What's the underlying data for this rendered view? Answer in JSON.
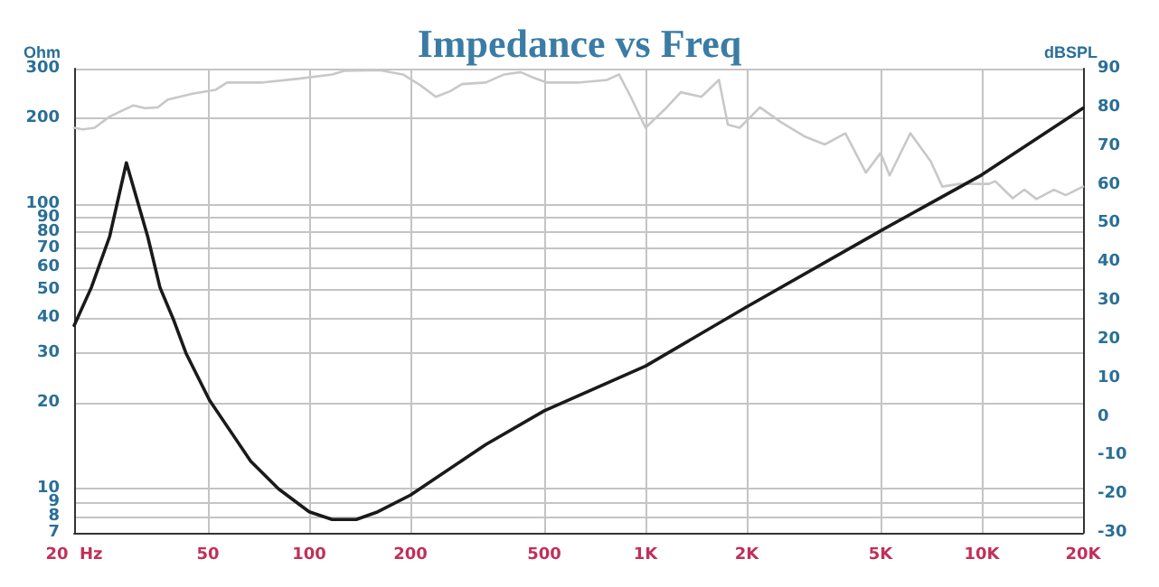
{
  "chart_data": {
    "type": "line",
    "title": "Impedance vs Freq",
    "ylabel": "Ohm",
    "y2label": "dBSPL",
    "log": "xy",
    "grid": true,
    "line_style": "solid",
    "marker": "none",
    "xlim": [
      20,
      20000
    ],
    "xticks": [
      {
        "value": 20,
        "label": "20  Hz"
      },
      50,
      100,
      200,
      500,
      {
        "value": 1000,
        "label": "1K"
      },
      {
        "value": 2000,
        "label": "2K"
      },
      {
        "value": 5000,
        "label": "5K"
      },
      {
        "value": 10000,
        "label": "10K"
      },
      {
        "value": 20000,
        "label": "20K"
      }
    ],
    "ylim": [
      7,
      300
    ],
    "yticks": [
      7,
      8,
      9,
      10,
      20,
      30,
      40,
      50,
      60,
      70,
      80,
      90,
      100,
      200,
      300
    ],
    "y2lim": [
      -30,
      90
    ],
    "y2ticks": [
      -30,
      -20,
      -10,
      0,
      10,
      20,
      30,
      40,
      50,
      60,
      70,
      80,
      90
    ],
    "series": [
      {
        "color": "#c8c8c8",
        "axis": "y2",
        "x": [
          20,
          21.2,
          23,
          25.5,
          30,
          32.5,
          35.5,
          38,
          45,
          52.6,
          57,
          72,
          93,
          117,
          127,
          162,
          190,
          215,
          238,
          263,
          285,
          335,
          380,
          425,
          460,
          510,
          629,
          770,
          834,
          904,
          1000,
          1151,
          1273,
          1466,
          1654,
          1757,
          1905,
          2190,
          2524,
          2966,
          3416,
          3930,
          4520,
          5000,
          5320,
          6130,
          7050,
          7630,
          8600,
          10500,
          10960,
          12350,
          13380,
          14540,
          16380,
          17770,
          20000
        ],
        "values": [
          74.7,
          74.3,
          74.7,
          77.6,
          80.5,
          79.8,
          80,
          82,
          83.5,
          84.5,
          86.4,
          86.4,
          87.4,
          88.5,
          89.4,
          89.6,
          88.5,
          85.6,
          82.7,
          84.2,
          86,
          86.4,
          88.5,
          89.1,
          87.8,
          86.4,
          86.4,
          87.1,
          88.5,
          82.7,
          74.7,
          79.8,
          83.9,
          82.7,
          87.1,
          75.5,
          74.7,
          80,
          76.2,
          72.5,
          70.4,
          73.3,
          63.1,
          68.2,
          62.4,
          73.3,
          66,
          59.5,
          60.2,
          60.2,
          60.9,
          56.5,
          58.7,
          56.3,
          58.7,
          57.3,
          59.5
        ]
      },
      {
        "color": "#1a1a1a",
        "x": [
          20,
          22.5,
          25.5,
          28.6,
          33.1,
          36,
          39.6,
          43,
          50.5,
          67,
          81,
          100,
          117,
          138,
          160,
          200,
          335,
          500,
          1000,
          2000,
          5000,
          10000,
          20000
        ],
        "values": [
          37.5,
          51,
          77,
          140,
          77,
          51,
          39,
          30,
          20.5,
          12.5,
          10,
          8.3,
          7.8,
          7.8,
          8.3,
          9.5,
          14.3,
          18.8,
          27,
          43.6,
          80.7,
          127,
          218
        ]
      }
    ]
  }
}
